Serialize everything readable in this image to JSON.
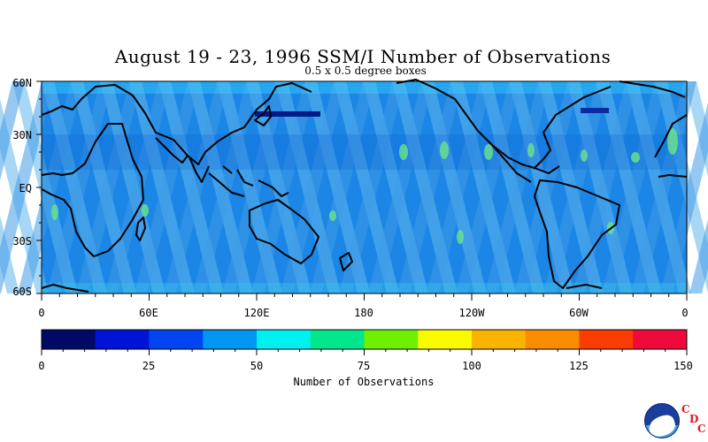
{
  "title": "August 19 - 23, 1996 SSM/I Number of Observations",
  "subtitle": "0.5 x 0.5 degree boxes",
  "map": {
    "lon_ticks": [
      "0",
      "60E",
      "120E",
      "180",
      "120W",
      "60W",
      "0"
    ],
    "lat_ticks": [
      "60N",
      "30N",
      "EQ",
      "30S",
      "60S"
    ],
    "lat_range": [
      -60,
      60
    ],
    "lon_range": [
      0,
      360
    ],
    "palette_name": "blue-dominant swath pattern"
  },
  "colorbar": {
    "title": "Number of Observations",
    "tick_labels": [
      "0",
      "25",
      "50",
      "75",
      "100",
      "125",
      "150"
    ],
    "range": [
      0,
      150
    ],
    "colors": [
      "#000a66",
      "#0014d7",
      "#0044f2",
      "#0096f2",
      "#00f0f0",
      "#00e68c",
      "#6ef000",
      "#fafa00",
      "#fab400",
      "#fa8c00",
      "#fa3c00",
      "#f00a3c"
    ]
  },
  "logos": {
    "noaa": "NOAA",
    "cdc_letters": [
      "C",
      "D",
      "C"
    ]
  }
}
